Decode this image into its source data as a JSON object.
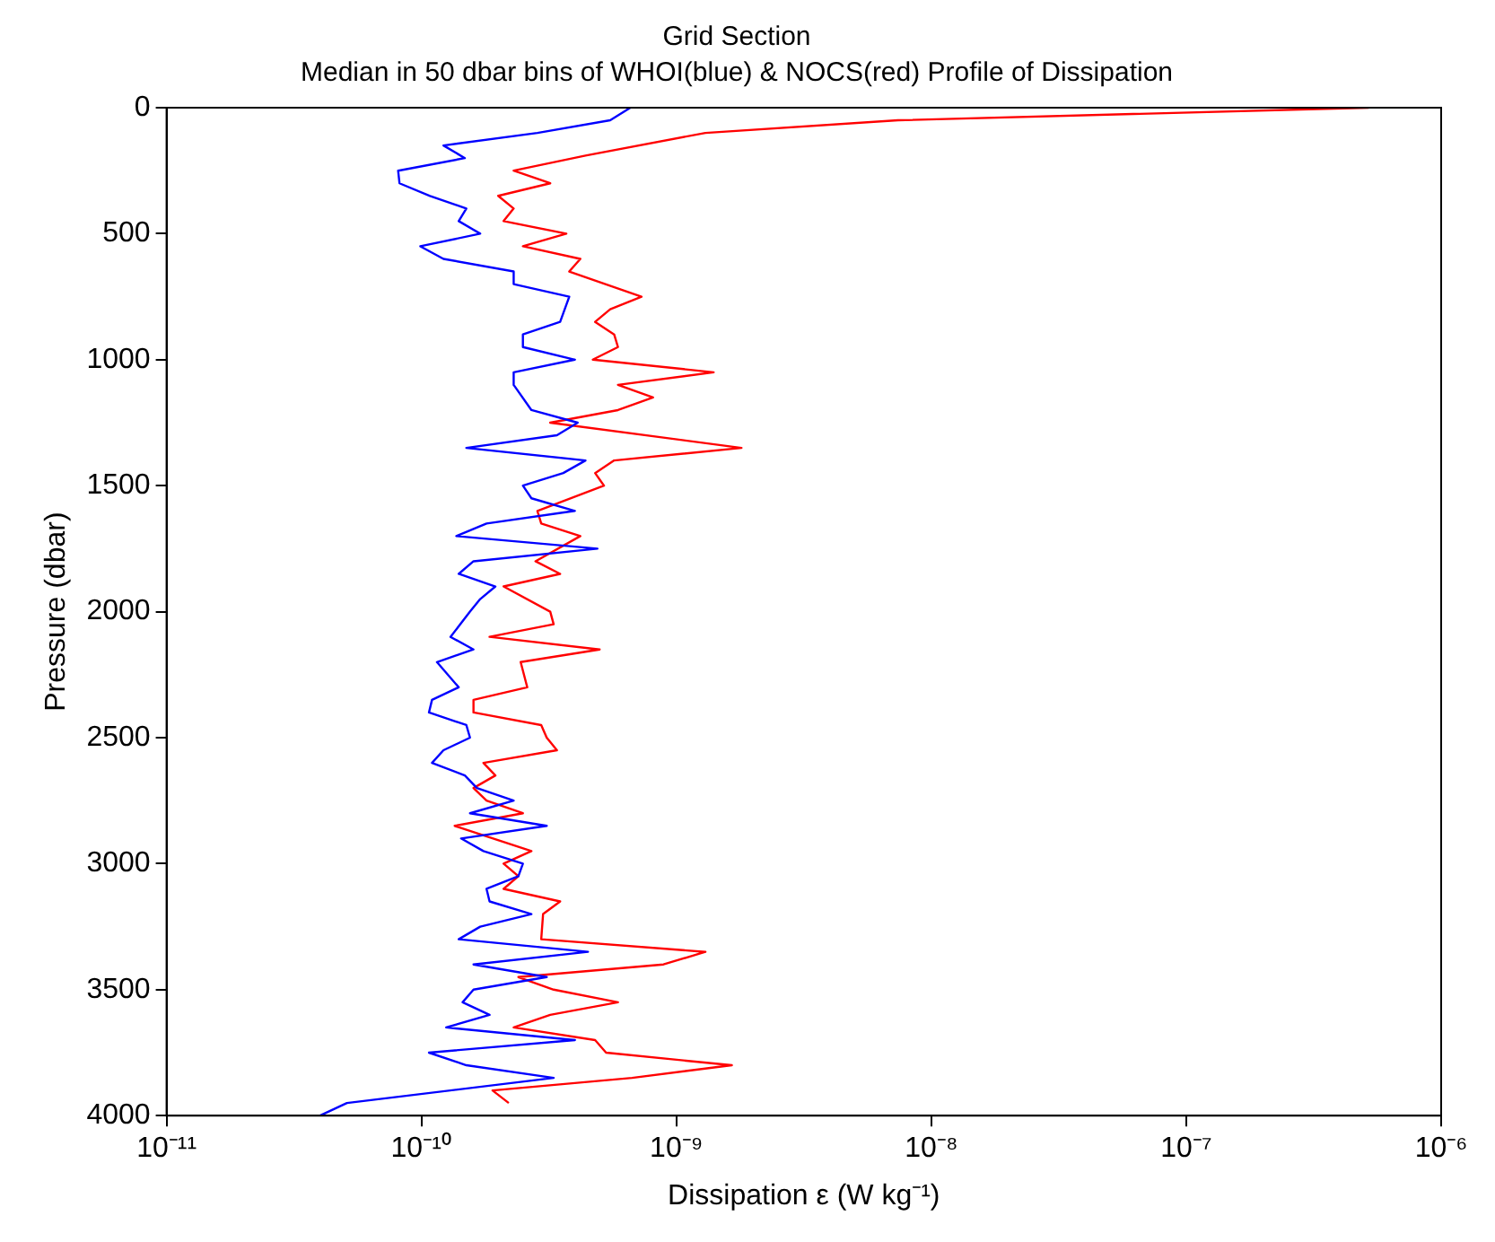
{
  "chart_data": {
    "type": "line",
    "title": "Grid Section",
    "subtitle": "Median in 50 dbar bins of WHOI(blue) & NOCS(red) Profile of Dissipation",
    "xlabel": "Dissipation ε (W kg⁻¹)",
    "ylabel": "Pressure (dbar)",
    "log": "x",
    "grid": false,
    "legend": false,
    "marker": "none",
    "line_style": "solid",
    "xlim": [
      1e-11,
      1e-06
    ],
    "xticks": [
      {
        "value": 1e-11,
        "label": "10⁻¹¹"
      },
      {
        "value": 1e-10,
        "label": "10⁻¹⁰"
      },
      {
        "value": 1e-09,
        "label": "10⁻⁹"
      },
      {
        "value": 1e-08,
        "label": "10⁻⁸"
      },
      {
        "value": 1e-07,
        "label": "10⁻⁷"
      },
      {
        "value": 1e-06,
        "label": "10⁻⁶"
      }
    ],
    "ylim": [
      4000,
      0
    ],
    "yticks": [
      0,
      500,
      1000,
      1500,
      2000,
      2500,
      3000,
      3500,
      4000
    ],
    "series": [
      {
        "color": "#0000ff",
        "x": [
          6.6e-10,
          5.5e-10,
          2.85e-10,
          1.22e-10,
          1.48e-10,
          8.1e-11,
          8.2e-11,
          1.08e-10,
          1.5e-10,
          1.4e-10,
          1.7e-10,
          9.9e-11,
          1.22e-10,
          2.3e-10,
          2.3e-10,
          3.8e-10,
          3.5e-10,
          2.5e-10,
          2.5e-10,
          4e-10,
          2.3e-10,
          2.3e-10,
          2.7e-10,
          4.1e-10,
          3.4e-10,
          1.5e-10,
          4.4e-10,
          3.6e-10,
          2.5e-10,
          2.7e-10,
          4e-10,
          1.8e-10,
          1.37e-10,
          4.9e-10,
          1.6e-10,
          1.4e-10,
          1.95e-10,
          1.7e-10,
          1.55e-10,
          1.3e-10,
          1.6e-10,
          1.15e-10,
          1.4e-10,
          1.1e-10,
          1.07e-10,
          1.5e-10,
          1.55e-10,
          1.22e-10,
          1.1e-10,
          1.48e-10,
          1.65e-10,
          2.3e-10,
          1.55e-10,
          3.1e-10,
          1.43e-10,
          1.75e-10,
          2.5e-10,
          2.4e-10,
          1.8e-10,
          1.85e-10,
          2.7e-10,
          1.7e-10,
          1.4e-10,
          4.5e-10,
          1.6e-10,
          3.1e-10,
          1.6e-10,
          1.45e-10,
          1.85e-10,
          1.25e-10,
          4e-10,
          1.07e-10,
          1.5e-10,
          3.3e-10,
          5.1e-11,
          4e-11
        ],
        "values": [
          0,
          50,
          100,
          150,
          200,
          250,
          300,
          350,
          400,
          450,
          500,
          550,
          600,
          650,
          700,
          750,
          850,
          900,
          950,
          1000,
          1050,
          1100,
          1200,
          1250,
          1300,
          1350,
          1400,
          1450,
          1500,
          1550,
          1600,
          1650,
          1700,
          1750,
          1800,
          1850,
          1900,
          1950,
          2000,
          2100,
          2150,
          2200,
          2300,
          2350,
          2400,
          2450,
          2500,
          2550,
          2600,
          2650,
          2700,
          2750,
          2800,
          2850,
          2900,
          2950,
          3000,
          3050,
          3100,
          3150,
          3200,
          3250,
          3300,
          3350,
          3400,
          3450,
          3500,
          3550,
          3600,
          3650,
          3700,
          3750,
          3800,
          3850,
          3950,
          4000
        ]
      },
      {
        "color": "#ff0000",
        "x": [
          5.2e-07,
          7.4e-09,
          1.3e-09,
          4.4e-10,
          2.3e-10,
          3.2e-10,
          2e-10,
          2.3e-10,
          2.1e-10,
          3.7e-10,
          2.5e-10,
          4.2e-10,
          3.8e-10,
          7.3e-10,
          5.5e-10,
          4.8e-10,
          5.7e-10,
          5.9e-10,
          4.7e-10,
          1.4e-09,
          5.9e-10,
          8.1e-10,
          5.9e-10,
          3.2e-10,
          1.8e-09,
          5.7e-10,
          4.8e-10,
          5.2e-10,
          2.85e-10,
          2.95e-10,
          4.2e-10,
          2.8e-10,
          3.5e-10,
          2.1e-10,
          3.2e-10,
          3.3e-10,
          1.85e-10,
          5e-10,
          2.45e-10,
          2.6e-10,
          1.6e-10,
          1.6e-10,
          2.95e-10,
          3.1e-10,
          3.4e-10,
          1.75e-10,
          1.95e-10,
          1.6e-10,
          1.8e-10,
          2.5e-10,
          1.35e-10,
          2.7e-10,
          2.1e-10,
          2.4e-10,
          2.1e-10,
          3.5e-10,
          3e-10,
          2.95e-10,
          1.3e-09,
          8.9e-10,
          2.4e-10,
          3.3e-10,
          5.9e-10,
          3.2e-10,
          2.3e-10,
          4.8e-10,
          5.3e-10,
          1.65e-09,
          6.7e-10,
          1.9e-10,
          2.2e-10
        ],
        "values": [
          0,
          50,
          100,
          190,
          250,
          300,
          350,
          400,
          450,
          500,
          550,
          600,
          650,
          750,
          800,
          850,
          900,
          950,
          1000,
          1050,
          1100,
          1150,
          1200,
          1250,
          1350,
          1400,
          1450,
          1500,
          1600,
          1650,
          1700,
          1800,
          1850,
          1900,
          2000,
          2050,
          2100,
          2150,
          2200,
          2300,
          2350,
          2400,
          2450,
          2500,
          2550,
          2600,
          2650,
          2700,
          2750,
          2800,
          2850,
          2950,
          3000,
          3050,
          3100,
          3150,
          3200,
          3300,
          3350,
          3400,
          3450,
          3500,
          3550,
          3600,
          3650,
          3700,
          3750,
          3800,
          3850,
          3900,
          3950
        ]
      }
    ]
  }
}
